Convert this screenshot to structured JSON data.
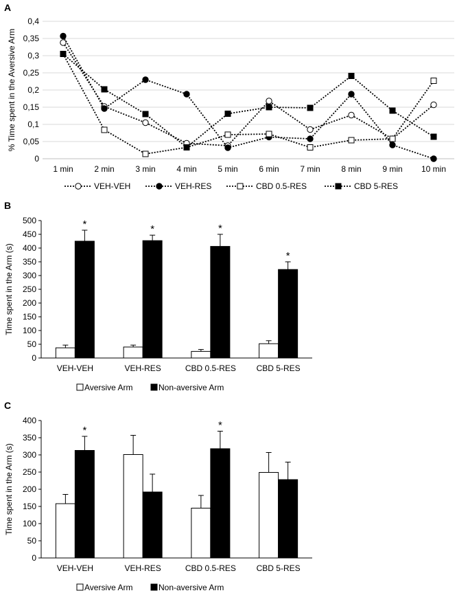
{
  "chart_data": [
    {
      "panel": "A",
      "type": "line",
      "ylabel": "% Time spent in the Aversive Arm",
      "x": [
        "1 min",
        "2 min",
        "3 min",
        "4 min",
        "5 min",
        "6 min",
        "7 min",
        "8 min",
        "9 min",
        "10 min"
      ],
      "ylim": [
        0,
        0.4
      ],
      "yticks": [
        "0",
        "0,05",
        "0,1",
        "0,15",
        "0,2",
        "0,25",
        "0,3",
        "0,35",
        "0,4"
      ],
      "legend_position": "bottom",
      "series": [
        {
          "name": "VEH-VEH",
          "marker": "circle-open",
          "color": "#000000",
          "values": [
            0.338,
            0.152,
            0.105,
            0.045,
            0.038,
            0.168,
            0.085,
            0.127,
            0.058,
            0.157
          ]
        },
        {
          "name": "VEH-RES",
          "marker": "circle-filled",
          "color": "#000000",
          "values": [
            0.357,
            0.146,
            0.23,
            0.188,
            0.032,
            0.063,
            0.058,
            0.188,
            0.04,
            0.0
          ]
        },
        {
          "name": "CBD 0.5-RES",
          "marker": "square-open",
          "color": "#000000",
          "values": [
            0.305,
            0.084,
            0.014,
            0.033,
            0.07,
            0.072,
            0.033,
            0.054,
            0.058,
            0.227
          ]
        },
        {
          "name": "CBD 5-RES",
          "marker": "square-filled",
          "color": "#000000",
          "values": [
            0.305,
            0.202,
            0.13,
            0.033,
            0.131,
            0.15,
            0.148,
            0.241,
            0.14,
            0.064
          ]
        }
      ]
    },
    {
      "panel": "B",
      "type": "bar",
      "ylabel": "Time spent in the Arm (s)",
      "categories": [
        "VEH-VEH",
        "VEH-RES",
        "CBD 0.5-RES",
        "CBD 5-RES"
      ],
      "ylim": [
        0,
        500
      ],
      "yticks": [
        "0",
        "50",
        "100",
        "150",
        "200",
        "250",
        "300",
        "350",
        "400",
        "450",
        "500"
      ],
      "legend_position": "bottom",
      "series": [
        {
          "name": "Aversive Arm",
          "fill": "#ffffff",
          "values": [
            37,
            40,
            24,
            52
          ],
          "errors": [
            10,
            7,
            7,
            11
          ]
        },
        {
          "name": "Non-aversive Arm",
          "fill": "#000000",
          "values": [
            425,
            427,
            406,
            322
          ],
          "errors": [
            40,
            20,
            44,
            28
          ]
        }
      ],
      "significance": [
        "*",
        "*",
        "*",
        "*"
      ]
    },
    {
      "panel": "C",
      "type": "bar",
      "ylabel": "Time spent in the Arm (s)",
      "categories": [
        "VEH-VEH",
        "VEH-RES",
        "CBD 0.5-RES",
        "CBD 5-RES"
      ],
      "ylim": [
        0,
        400
      ],
      "yticks": [
        "0",
        "50",
        "100",
        "150",
        "200",
        "250",
        "300",
        "350",
        "400"
      ],
      "legend_position": "bottom",
      "series": [
        {
          "name": "Aversive Arm",
          "fill": "#ffffff",
          "values": [
            158,
            301,
            145,
            249
          ],
          "errors": [
            27,
            56,
            37,
            58
          ]
        },
        {
          "name": "Non-aversive Arm",
          "fill": "#000000",
          "values": [
            313,
            192,
            318,
            228
          ],
          "errors": [
            41,
            52,
            51,
            51
          ]
        }
      ],
      "significance": [
        "*",
        "",
        "*",
        ""
      ]
    }
  ]
}
